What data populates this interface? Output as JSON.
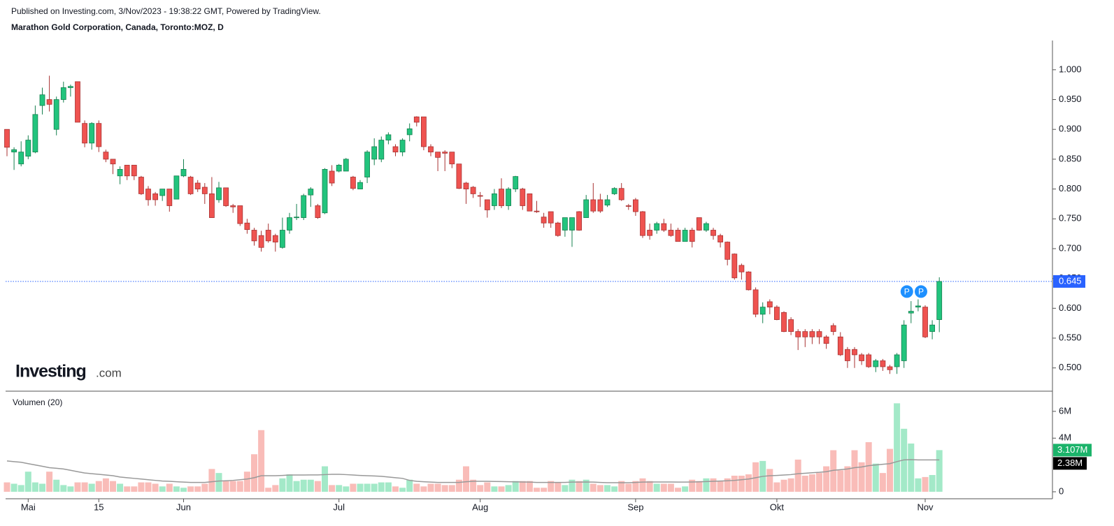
{
  "header": {
    "published": "Published on Investing.com, 3/Nov/2023 - 19:38:22 GMT, Powered by TradingView.",
    "instrument": "Marathon Gold Corporation, Canada, Toronto:MOZ, D"
  },
  "logo": {
    "brand": "Investing",
    "suffix": ".com"
  },
  "chart_data": {
    "type": "candlestick",
    "volume_title": "Volumen (20)",
    "up_color": "#22c47d",
    "down_color": "#ef5350",
    "volume_up_color": "#a3e9c8",
    "volume_down_color": "#f9bcb8",
    "ma_color": "#999999",
    "price_line_color": "#2962ff",
    "categories": [
      null,
      null,
      null,
      "Mai",
      null,
      null,
      null,
      null,
      null,
      null,
      null,
      null,
      null,
      "15",
      null,
      null,
      null,
      null,
      null,
      null,
      null,
      null,
      null,
      null,
      null,
      "Jun",
      null,
      null,
      null,
      null,
      null,
      null,
      null,
      null,
      null,
      null,
      null,
      null,
      null,
      null,
      null,
      null,
      null,
      null,
      null,
      null,
      null,
      "Jul",
      null,
      null,
      null,
      null,
      null,
      null,
      null,
      null,
      null,
      null,
      null,
      null,
      null,
      null,
      null,
      null,
      null,
      null,
      null,
      "Aug",
      null,
      null,
      null,
      null,
      null,
      null,
      null,
      null,
      null,
      null,
      null,
      null,
      null,
      null,
      null,
      null,
      null,
      null,
      null,
      null,
      null,
      "Sep",
      null,
      null,
      null,
      null,
      null,
      null,
      null,
      null,
      null,
      null,
      null,
      null,
      null,
      null,
      null,
      null,
      null,
      null,
      null,
      "Okt",
      null,
      null,
      null,
      null,
      null,
      null,
      null,
      null,
      null,
      null,
      null,
      null,
      null,
      null,
      null,
      null,
      null,
      null,
      null,
      null,
      "Nov",
      null,
      null
    ],
    "open": [
      0.9,
      0.862,
      0.842,
      0.855,
      0.862,
      0.94,
      0.95,
      0.9,
      0.95,
      0.97,
      0.98,
      0.91,
      0.877,
      0.91,
      0.862,
      0.85,
      0.822,
      0.84,
      0.84,
      0.82,
      0.8,
      0.792,
      0.789,
      0.8,
      0.783,
      0.822,
      0.82,
      0.81,
      0.803,
      0.792,
      0.782,
      0.802,
      0.772,
      0.772,
      0.743,
      0.731,
      0.722,
      0.731,
      0.722,
      0.702,
      0.731,
      0.752,
      0.752,
      0.79,
      0.772,
      0.76,
      0.83,
      0.83,
      0.83,
      0.82,
      0.8,
      0.82,
      0.85,
      0.85,
      0.882,
      0.871,
      0.862,
      0.891,
      0.921,
      0.921,
      0.871,
      0.862,
      0.862,
      0.862,
      0.842,
      0.81,
      0.803,
      0.789,
      0.782,
      0.772,
      0.8,
      0.772,
      0.8,
      0.8,
      0.792,
      0.763,
      0.753,
      0.762,
      0.743,
      0.731,
      0.731,
      0.762,
      0.752,
      0.782,
      0.782,
      0.773,
      0.792,
      0.801,
      0.772,
      0.782,
      0.762,
      0.731,
      0.731,
      0.742,
      0.731,
      0.731,
      0.712,
      0.731,
      0.752,
      0.731,
      0.731,
      0.722,
      0.711,
      0.691,
      0.672,
      0.661,
      0.631,
      0.59,
      0.611,
      0.602,
      0.593,
      0.581,
      0.561,
      0.561,
      0.561,
      0.561,
      0.552,
      0.571,
      0.552,
      0.531,
      0.531,
      0.522,
      0.522,
      0.502,
      0.512,
      0.502,
      0.502,
      0.512,
      0.592,
      0.602,
      0.602,
      0.561,
      0.581
    ],
    "high": [
      0.9,
      0.87,
      0.88,
      0.89,
      0.94,
      0.97,
      0.99,
      0.955,
      0.98,
      0.975,
      0.98,
      0.915,
      0.912,
      0.915,
      0.866,
      0.85,
      0.838,
      0.84,
      0.84,
      0.822,
      0.805,
      0.795,
      0.8,
      0.8,
      0.822,
      0.85,
      0.822,
      0.815,
      0.81,
      0.82,
      0.812,
      0.802,
      0.775,
      0.772,
      0.75,
      0.735,
      0.73,
      0.742,
      0.725,
      0.752,
      0.76,
      0.775,
      0.792,
      0.803,
      0.775,
      0.835,
      0.84,
      0.842,
      0.852,
      0.822,
      0.815,
      0.865,
      0.885,
      0.888,
      0.895,
      0.875,
      0.885,
      0.91,
      0.922,
      0.921,
      0.875,
      0.862,
      0.865,
      0.862,
      0.842,
      0.812,
      0.805,
      0.795,
      0.782,
      0.8,
      0.818,
      0.803,
      0.822,
      0.802,
      0.792,
      0.78,
      0.76,
      0.762,
      0.745,
      0.752,
      0.752,
      0.763,
      0.79,
      0.81,
      0.792,
      0.79,
      0.803,
      0.81,
      0.775,
      0.785,
      0.763,
      0.742,
      0.745,
      0.75,
      0.742,
      0.735,
      0.735,
      0.735,
      0.752,
      0.745,
      0.735,
      0.725,
      0.712,
      0.692,
      0.675,
      0.662,
      0.635,
      0.61,
      0.615,
      0.605,
      0.595,
      0.585,
      0.565,
      0.565,
      0.565,
      0.565,
      0.555,
      0.575,
      0.56,
      0.535,
      0.535,
      0.525,
      0.525,
      0.515,
      0.515,
      0.505,
      0.525,
      0.58,
      0.612,
      0.615,
      0.605,
      0.58,
      0.652
    ],
    "low": [
      0.855,
      0.832,
      0.838,
      0.85,
      0.86,
      0.925,
      0.93,
      0.89,
      0.945,
      0.955,
      0.912,
      0.87,
      0.866,
      0.862,
      0.845,
      0.825,
      0.808,
      0.815,
      0.815,
      0.79,
      0.772,
      0.772,
      0.78,
      0.762,
      0.783,
      0.82,
      0.79,
      0.795,
      0.775,
      0.752,
      0.777,
      0.77,
      0.76,
      0.738,
      0.725,
      0.705,
      0.695,
      0.71,
      0.695,
      0.7,
      0.725,
      0.748,
      0.748,
      0.77,
      0.75,
      0.758,
      0.805,
      0.828,
      0.83,
      0.798,
      0.8,
      0.81,
      0.84,
      0.845,
      0.875,
      0.855,
      0.855,
      0.88,
      0.905,
      0.865,
      0.855,
      0.83,
      0.83,
      0.835,
      0.8,
      0.775,
      0.785,
      0.77,
      0.752,
      0.765,
      0.768,
      0.765,
      0.795,
      0.765,
      0.763,
      0.76,
      0.735,
      0.735,
      0.72,
      0.72,
      0.703,
      0.73,
      0.752,
      0.76,
      0.76,
      0.77,
      0.79,
      0.78,
      0.765,
      0.755,
      0.718,
      0.715,
      0.725,
      0.728,
      0.72,
      0.712,
      0.712,
      0.702,
      0.73,
      0.728,
      0.715,
      0.702,
      0.672,
      0.648,
      0.648,
      0.63,
      0.585,
      0.575,
      0.59,
      0.58,
      0.56,
      0.555,
      0.53,
      0.535,
      0.54,
      0.54,
      0.532,
      0.555,
      0.52,
      0.5,
      0.5,
      0.505,
      0.5,
      0.493,
      0.495,
      0.49,
      0.49,
      0.5,
      0.575,
      0.595,
      0.55,
      0.548,
      0.56
    ],
    "close": [
      0.87,
      0.866,
      0.862,
      0.882,
      0.925,
      0.958,
      0.942,
      0.95,
      0.97,
      0.972,
      0.912,
      0.877,
      0.91,
      0.871,
      0.85,
      0.842,
      0.833,
      0.822,
      0.822,
      0.792,
      0.782,
      0.782,
      0.8,
      0.772,
      0.822,
      0.833,
      0.792,
      0.8,
      0.792,
      0.752,
      0.802,
      0.772,
      0.77,
      0.742,
      0.732,
      0.713,
      0.702,
      0.713,
      0.711,
      0.731,
      0.752,
      0.753,
      0.789,
      0.8,
      0.752,
      0.833,
      0.81,
      0.84,
      0.85,
      0.801,
      0.811,
      0.862,
      0.871,
      0.882,
      0.891,
      0.862,
      0.882,
      0.901,
      0.912,
      0.871,
      0.862,
      0.853,
      0.86,
      0.842,
      0.801,
      0.8,
      0.792,
      0.788,
      0.765,
      0.792,
      0.772,
      0.8,
      0.821,
      0.772,
      0.763,
      0.762,
      0.743,
      0.743,
      0.722,
      0.752,
      0.752,
      0.731,
      0.782,
      0.763,
      0.763,
      0.782,
      0.801,
      0.782,
      0.771,
      0.762,
      0.722,
      0.722,
      0.742,
      0.731,
      0.722,
      0.712,
      0.731,
      0.712,
      0.731,
      0.742,
      0.722,
      0.711,
      0.682,
      0.651,
      0.661,
      0.631,
      0.59,
      0.602,
      0.602,
      0.581,
      0.561,
      0.561,
      0.552,
      0.552,
      0.552,
      0.552,
      0.541,
      0.561,
      0.522,
      0.512,
      0.522,
      0.512,
      0.502,
      0.512,
      0.502,
      0.497,
      0.522,
      0.572,
      0.595,
      0.604,
      0.552,
      0.572,
      0.645
    ],
    "volume": [
      0.7,
      0.6,
      0.5,
      1.5,
      0.7,
      0.6,
      1.5,
      0.9,
      0.5,
      0.4,
      0.7,
      0.7,
      0.6,
      0.8,
      1.0,
      0.8,
      0.6,
      0.4,
      0.4,
      0.7,
      0.7,
      0.6,
      0.4,
      0.6,
      0.4,
      0.3,
      0.4,
      0.4,
      0.6,
      1.7,
      1.4,
      0.8,
      0.8,
      0.8,
      1.5,
      2.8,
      4.6,
      0.3,
      0.5,
      1.0,
      1.3,
      0.8,
      0.9,
      0.9,
      0.8,
      1.9,
      0.5,
      0.5,
      0.4,
      0.6,
      0.6,
      0.6,
      0.6,
      0.7,
      0.7,
      0.4,
      0.3,
      0.9,
      0.6,
      0.4,
      0.6,
      0.6,
      0.5,
      0.5,
      0.9,
      1.9,
      0.9,
      0.5,
      0.7,
      0.4,
      0.4,
      0.5,
      0.8,
      0.8,
      0.8,
      0.3,
      0.3,
      0.8,
      0.7,
      0.5,
      0.9,
      0.8,
      0.9,
      0.6,
      0.5,
      0.5,
      0.4,
      0.8,
      0.6,
      0.8,
      1.0,
      0.8,
      0.6,
      0.6,
      0.6,
      0.3,
      0.4,
      0.9,
      0.8,
      1.0,
      1.0,
      0.8,
      1.0,
      1.2,
      1.2,
      1.3,
      2.2,
      2.3,
      1.7,
      0.7,
      0.9,
      1.0,
      2.4,
      1.2,
      1.3,
      1.4,
      1.9,
      3.1,
      1.6,
      1.9,
      3.1,
      2.2,
      3.7,
      2.1,
      1.4,
      3.2,
      6.6,
      4.7,
      3.6,
      1.0,
      1.1,
      1.25,
      3.107
    ],
    "volume_ma": [
      2.3,
      2.25,
      2.2,
      2.1,
      2.0,
      1.9,
      1.8,
      1.75,
      1.7,
      1.6,
      1.5,
      1.4,
      1.35,
      1.3,
      1.25,
      1.2,
      1.1,
      1.05,
      1.0,
      0.95,
      0.9,
      0.85,
      0.8,
      0.78,
      0.75,
      0.72,
      0.7,
      0.7,
      0.7,
      0.75,
      0.8,
      0.82,
      0.85,
      0.9,
      0.95,
      1.05,
      1.2,
      1.2,
      1.2,
      1.22,
      1.25,
      1.25,
      1.25,
      1.26,
      1.26,
      1.28,
      1.3,
      1.3,
      1.28,
      1.25,
      1.22,
      1.2,
      1.18,
      1.15,
      1.1,
      1.05,
      1.0,
      0.85,
      0.78,
      0.75,
      0.72,
      0.7,
      0.7,
      0.7,
      0.7,
      0.75,
      0.78,
      0.78,
      0.78,
      0.77,
      0.76,
      0.75,
      0.74,
      0.73,
      0.72,
      0.7,
      0.7,
      0.7,
      0.7,
      0.7,
      0.72,
      0.72,
      0.73,
      0.72,
      0.7,
      0.68,
      0.68,
      0.68,
      0.68,
      0.7,
      0.72,
      0.73,
      0.73,
      0.73,
      0.73,
      0.72,
      0.72,
      0.73,
      0.74,
      0.76,
      0.78,
      0.8,
      0.82,
      0.85,
      0.9,
      0.95,
      1.05,
      1.15,
      1.2,
      1.22,
      1.25,
      1.28,
      1.35,
      1.38,
      1.42,
      1.45,
      1.5,
      1.6,
      1.65,
      1.7,
      1.8,
      1.85,
      1.95,
      2.0,
      2.05,
      2.1,
      2.25,
      2.38,
      2.4,
      2.38,
      2.38,
      2.38,
      2.38
    ],
    "ylim": [
      0.461,
      1.049
    ],
    "yticks": [
      {
        "value": 0.5,
        "label": "0.500"
      },
      {
        "value": 0.55,
        "label": "0.550"
      },
      {
        "value": 0.6,
        "label": "0.600"
      },
      {
        "value": 0.65,
        "label": "0.650"
      },
      {
        "value": 0.7,
        "label": "0.700"
      },
      {
        "value": 0.75,
        "label": "0.750"
      },
      {
        "value": 0.8,
        "label": "0.800"
      },
      {
        "value": 0.85,
        "label": "0.850"
      },
      {
        "value": 0.9,
        "label": "0.900"
      },
      {
        "value": 0.95,
        "label": "0.950"
      },
      {
        "value": 1.0,
        "label": "1.000"
      }
    ],
    "y2lim": [
      0,
      7.4
    ],
    "y2ticks": [
      0,
      {
        "value": 4,
        "label": "4M"
      },
      {
        "value": 6,
        "label": "6M"
      }
    ],
    "last_price": 0.645,
    "last_volume": {
      "value": 3.107,
      "label": "3.107M"
    },
    "last_volume_ma": {
      "value": 2.38,
      "label": "2.38M"
    },
    "annotations": [
      {
        "text": "P",
        "index": 128,
        "y": 0.628
      },
      {
        "text": "P",
        "index": 130,
        "y": 0.628
      }
    ]
  }
}
